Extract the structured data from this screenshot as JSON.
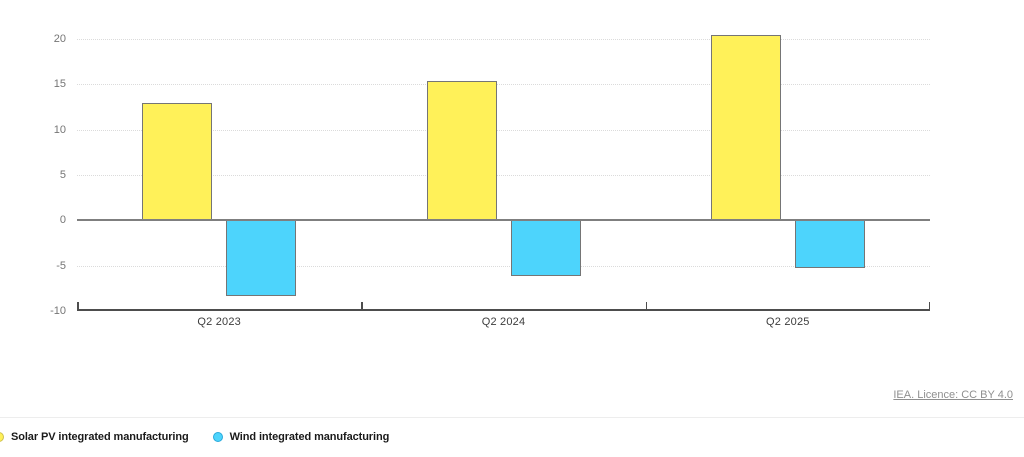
{
  "footer": {
    "license_link": "IEA. Licence: CC BY 4.0"
  },
  "chart_data": {
    "type": "bar",
    "categories": [
      "Q2 2023",
      "Q2 2024",
      "Q2 2025"
    ],
    "series": [
      {
        "name": "Solar PV integrated manufacturing",
        "values": [
          12.9,
          15.4,
          20.4
        ],
        "color": "#FFF159",
        "legend_ring": "#CFC14E"
      },
      {
        "name": "Wind integrated manufacturing",
        "values": [
          -8.3,
          -6.1,
          -5.3
        ],
        "color": "#4DD4FC",
        "legend_ring": "#29A9DB"
      }
    ],
    "ylim": [
      -10,
      20
    ],
    "yticks": [
      20,
      15,
      10,
      5,
      0,
      -5,
      -10
    ],
    "grid": {
      "horizontal": "dotted",
      "color": "#DBDBDB"
    },
    "zero_line_color": "#7F7F7F",
    "axis_line_color": "#4D4D4D",
    "bar_border_color": "#757575",
    "legend_position": "bottom-left"
  }
}
